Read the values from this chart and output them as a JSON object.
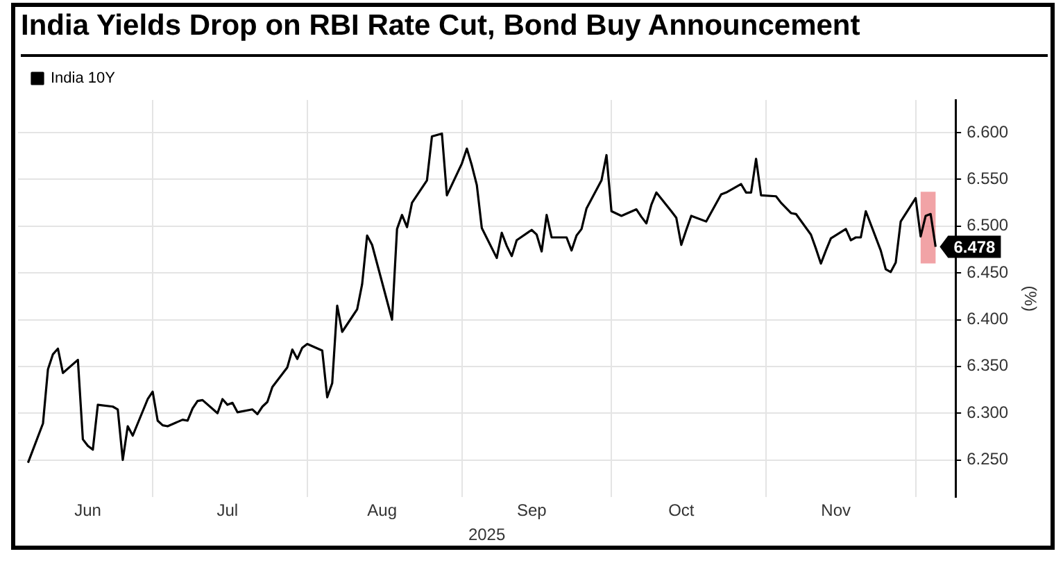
{
  "chart_data": {
    "type": "line",
    "title": "India Yields Drop on RBI Rate Cut, Bond Buy Announcement",
    "xlabel": "2025",
    "ylabel": "(%)",
    "x": [
      "2025-06-06",
      "2025-06-09",
      "2025-06-10",
      "2025-06-11",
      "2025-06-12",
      "2025-06-13",
      "2025-06-16",
      "2025-06-17",
      "2025-06-18",
      "2025-06-19",
      "2025-06-20",
      "2025-06-23",
      "2025-06-24",
      "2025-06-25",
      "2025-06-26",
      "2025-06-27",
      "2025-06-30",
      "2025-07-01",
      "2025-07-02",
      "2025-07-03",
      "2025-07-04",
      "2025-07-07",
      "2025-07-08",
      "2025-07-09",
      "2025-07-10",
      "2025-07-11",
      "2025-07-14",
      "2025-07-15",
      "2025-07-16",
      "2025-07-17",
      "2025-07-18",
      "2025-07-21",
      "2025-07-22",
      "2025-07-23",
      "2025-07-24",
      "2025-07-25",
      "2025-07-28",
      "2025-07-29",
      "2025-07-30",
      "2025-07-31",
      "2025-08-01",
      "2025-08-04",
      "2025-08-05",
      "2025-08-06",
      "2025-08-07",
      "2025-08-08",
      "2025-08-11",
      "2025-08-12",
      "2025-08-13",
      "2025-08-14",
      "2025-08-18",
      "2025-08-19",
      "2025-08-20",
      "2025-08-21",
      "2025-08-22",
      "2025-08-25",
      "2025-08-26",
      "2025-08-28",
      "2025-08-29",
      "2025-09-01",
      "2025-09-02",
      "2025-09-03",
      "2025-09-04",
      "2025-09-05",
      "2025-09-08",
      "2025-09-09",
      "2025-09-10",
      "2025-09-11",
      "2025-09-12",
      "2025-09-15",
      "2025-09-16",
      "2025-09-17",
      "2025-09-18",
      "2025-09-19",
      "2025-09-22",
      "2025-09-23",
      "2025-09-24",
      "2025-09-25",
      "2025-09-26",
      "2025-09-29",
      "2025-09-30",
      "2025-10-01",
      "2025-10-03",
      "2025-10-06",
      "2025-10-07",
      "2025-10-08",
      "2025-10-09",
      "2025-10-10",
      "2025-10-13",
      "2025-10-14",
      "2025-10-15",
      "2025-10-16",
      "2025-10-17",
      "2025-10-20",
      "2025-10-23",
      "2025-10-24",
      "2025-10-27",
      "2025-10-28",
      "2025-10-29",
      "2025-10-30",
      "2025-10-31",
      "2025-11-03",
      "2025-11-04",
      "2025-11-06",
      "2025-11-07",
      "2025-11-10",
      "2025-11-11",
      "2025-11-12",
      "2025-11-13",
      "2025-11-14",
      "2025-11-17",
      "2025-11-18",
      "2025-11-19",
      "2025-11-20",
      "2025-11-21",
      "2025-11-24",
      "2025-11-25",
      "2025-11-26",
      "2025-11-27",
      "2025-11-28",
      "2025-12-01",
      "2025-12-02",
      "2025-12-03",
      "2025-12-04",
      "2025-12-05"
    ],
    "series": [
      {
        "name": "India 10Y",
        "color": "#000000",
        "values": [
          6.247,
          6.289,
          6.347,
          6.363,
          6.369,
          6.343,
          6.357,
          6.272,
          6.265,
          6.261,
          6.309,
          6.307,
          6.304,
          6.25,
          6.286,
          6.276,
          6.315,
          6.323,
          6.292,
          6.287,
          6.286,
          6.293,
          6.292,
          6.305,
          6.313,
          6.314,
          6.3,
          6.315,
          6.309,
          6.311,
          6.301,
          6.304,
          6.299,
          6.307,
          6.312,
          6.328,
          6.349,
          6.368,
          6.358,
          6.37,
          6.374,
          6.367,
          6.317,
          6.332,
          6.415,
          6.387,
          6.411,
          6.438,
          6.49,
          6.48,
          6.4,
          6.497,
          6.512,
          6.499,
          6.525,
          6.549,
          6.596,
          6.599,
          6.533,
          6.567,
          6.583,
          6.565,
          6.544,
          6.498,
          6.466,
          6.493,
          6.479,
          6.468,
          6.485,
          6.496,
          6.491,
          6.473,
          6.512,
          6.488,
          6.488,
          6.474,
          6.49,
          6.497,
          6.519,
          6.549,
          6.576,
          6.516,
          6.511,
          6.518,
          6.51,
          6.503,
          6.523,
          6.536,
          6.516,
          6.509,
          6.48,
          6.496,
          6.511,
          6.505,
          6.534,
          6.536,
          6.545,
          6.536,
          6.536,
          6.572,
          6.533,
          6.532,
          6.525,
          6.514,
          6.513,
          6.491,
          6.476,
          6.46,
          6.474,
          6.487,
          6.497,
          6.485,
          6.488,
          6.488,
          6.516,
          6.474,
          6.454,
          6.451,
          6.461,
          6.505,
          6.53,
          6.489,
          6.511,
          6.513,
          6.478
        ],
        "value_labels": [
          null,
          null,
          null,
          null,
          null,
          null,
          null,
          null,
          null,
          null,
          null,
          null,
          null,
          null,
          null,
          null,
          null,
          null,
          null,
          null,
          null,
          null,
          null,
          null,
          null,
          null,
          null,
          null,
          null,
          null,
          null,
          null,
          null,
          null,
          null,
          null,
          null,
          null,
          null,
          null,
          null,
          null,
          null,
          null,
          null,
          null,
          null,
          null,
          null,
          null,
          null,
          null,
          null,
          null,
          null,
          null,
          null,
          null,
          null,
          null,
          null,
          null,
          null,
          null,
          null,
          null,
          null,
          null,
          null,
          null,
          null,
          null,
          null,
          null,
          null,
          null,
          null,
          null,
          null,
          null,
          null,
          null,
          null,
          null,
          null,
          null,
          null,
          null,
          null,
          null,
          null,
          null,
          null,
          null,
          null,
          null,
          null,
          null,
          null,
          null,
          null,
          null,
          null,
          null,
          null,
          null,
          null,
          null,
          null,
          null,
          null,
          null,
          null,
          null,
          null,
          null,
          null,
          null,
          null,
          null,
          null,
          null,
          null,
          null,
          "6.478"
        ]
      }
    ],
    "xlim": [
      "2025-06-04",
      "2025-12-09"
    ],
    "xticks": [
      {
        "value": "2025-06-18",
        "label": "Jun"
      },
      {
        "value": "2025-07-01",
        "label": null
      },
      {
        "value": "2025-07-16",
        "label": "Jul"
      },
      {
        "value": "2025-08-01",
        "label": null
      },
      {
        "value": "2025-08-16",
        "label": "Aug"
      },
      {
        "value": "2025-09-01",
        "label": null
      },
      {
        "value": "2025-09-15",
        "label": "Sep"
      },
      {
        "value": "2025-10-01",
        "label": null
      },
      {
        "value": "2025-10-15",
        "label": "Oct"
      },
      {
        "value": "2025-11-01",
        "label": null
      },
      {
        "value": "2025-11-15",
        "label": "Nov"
      },
      {
        "value": "2025-12-01",
        "label": null
      }
    ],
    "ylim": [
      6.21,
      6.635
    ],
    "yticks": [
      {
        "value": 6.25,
        "label": "6.250"
      },
      {
        "value": 6.3,
        "label": "6.300"
      },
      {
        "value": 6.35,
        "label": "6.350"
      },
      {
        "value": 6.4,
        "label": "6.400"
      },
      {
        "value": 6.45,
        "label": "6.450"
      },
      {
        "value": 6.5,
        "label": "6.500"
      },
      {
        "value": 6.55,
        "label": "6.550"
      },
      {
        "value": 6.6,
        "label": "6.600"
      }
    ],
    "bands": [
      {
        "axis": "x",
        "from": "2025-12-02",
        "to": "2025-12-05",
        "color": "#e8666b"
      }
    ],
    "grid": true,
    "legend": "top left",
    "marker": "none",
    "line_style": "solid"
  }
}
